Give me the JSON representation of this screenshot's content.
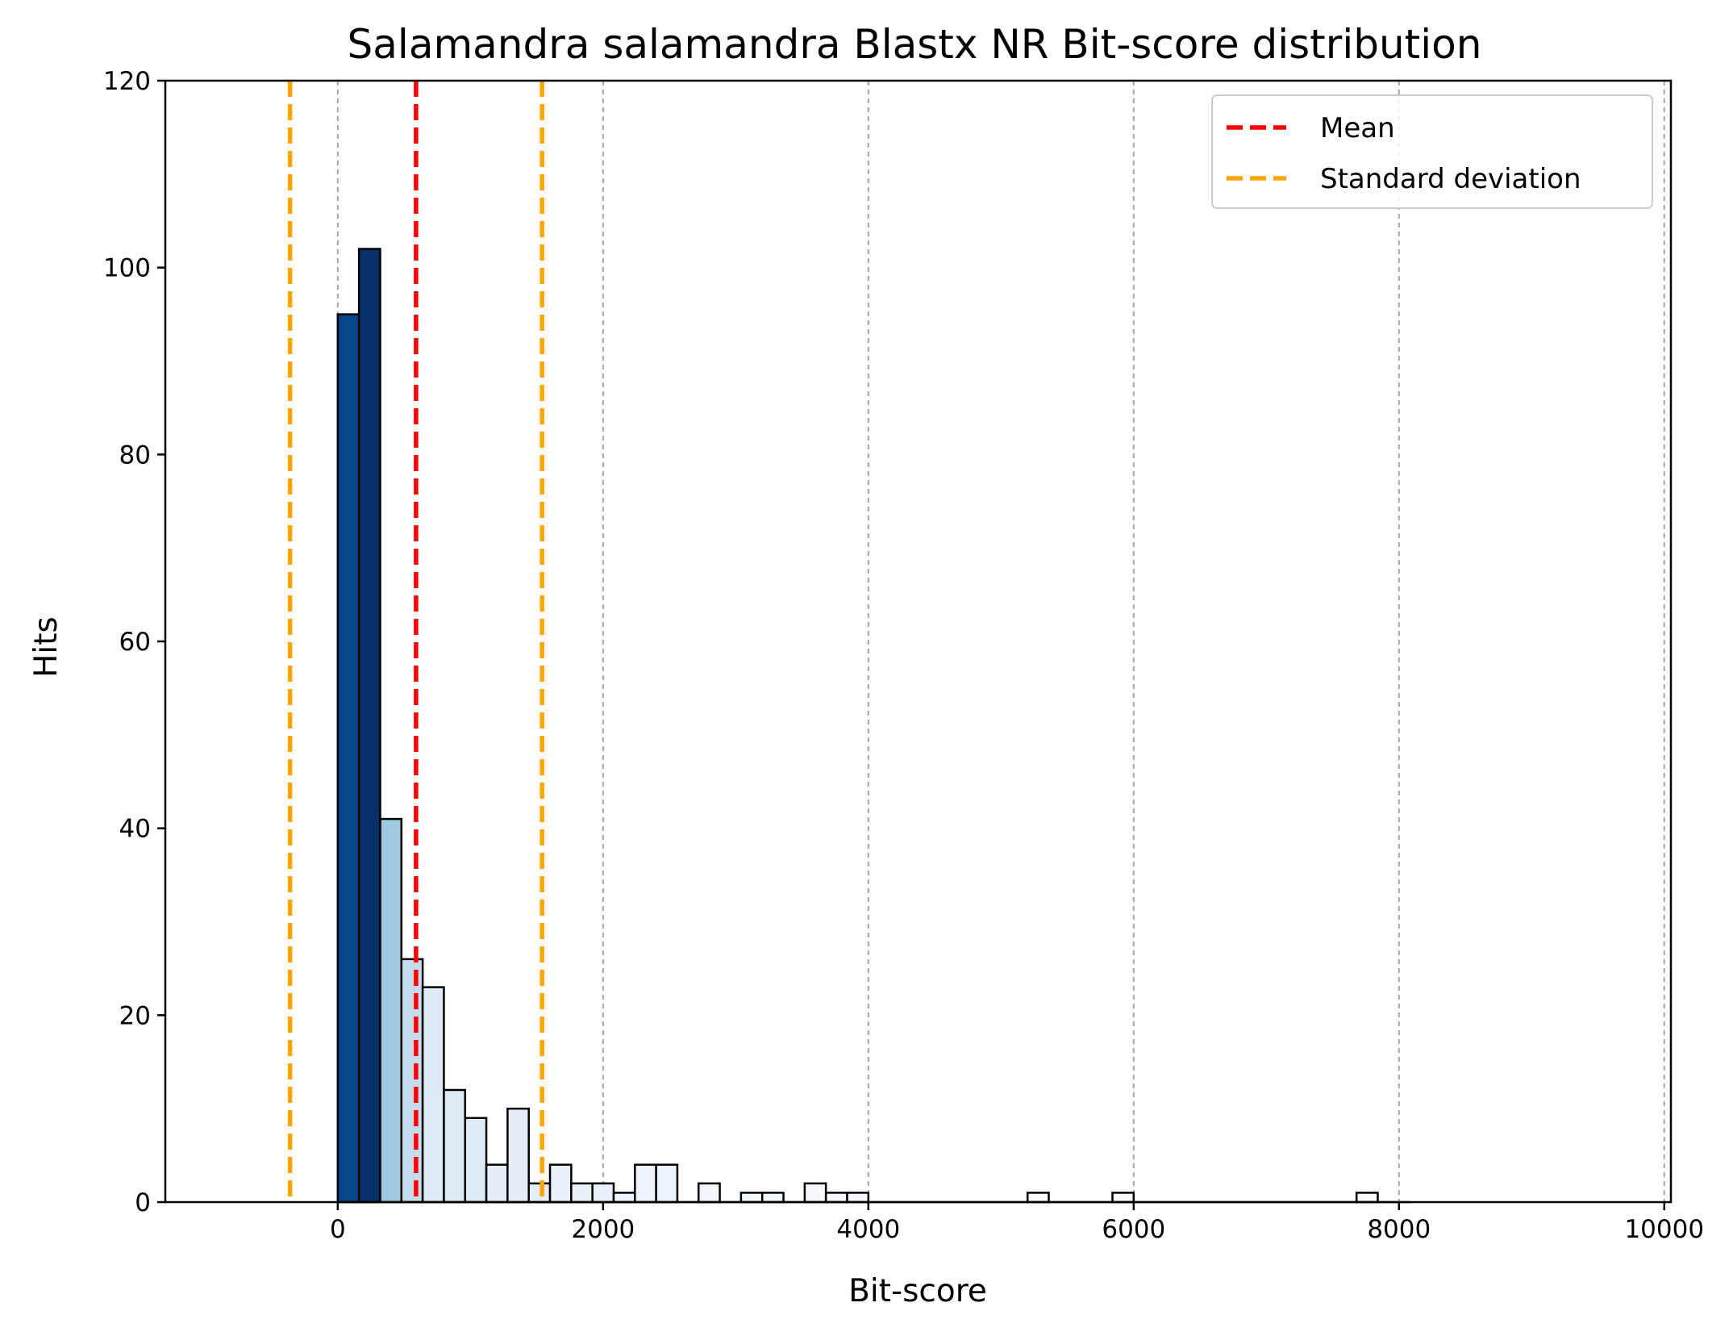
{
  "chart_data": {
    "type": "bar",
    "title": "Salamandra salamandra Blastx NR Bit-score distribution",
    "xlabel": "Bit-score",
    "ylabel": "Hits",
    "xlim": [
      -1300,
      10050
    ],
    "ylim": [
      0,
      120
    ],
    "xticks": [
      "0",
      "2000",
      "4000",
      "6000",
      "8000",
      "10000"
    ],
    "yticks": [
      "0",
      "20",
      "40",
      "60",
      "80",
      "100",
      "120"
    ],
    "grid": "vertical dashed at x ticks",
    "bin_width": 160,
    "bins": [
      {
        "x": 0,
        "value": 95,
        "color": "#08468a"
      },
      {
        "x": 160,
        "value": 102,
        "color": "#08306b"
      },
      {
        "x": 320,
        "value": 41,
        "color": "#9ecae1"
      },
      {
        "x": 480,
        "value": 26,
        "color": "#c6dbef"
      },
      {
        "x": 640,
        "value": 23,
        "color": "#deebf7"
      },
      {
        "x": 800,
        "value": 12,
        "color": "#deebf7"
      },
      {
        "x": 960,
        "value": 9,
        "color": "#deebf7"
      },
      {
        "x": 1120,
        "value": 4,
        "color": "#e3eef9"
      },
      {
        "x": 1280,
        "value": 10,
        "color": "#e3eef9"
      },
      {
        "x": 1440,
        "value": 2,
        "color": "#e3eef9"
      },
      {
        "x": 1600,
        "value": 4,
        "color": "#e8f1fa"
      },
      {
        "x": 1760,
        "value": 2,
        "color": "#e8f1fa"
      },
      {
        "x": 1920,
        "value": 2,
        "color": "#e8f1fa"
      },
      {
        "x": 2080,
        "value": 1,
        "color": "#edf4fb"
      },
      {
        "x": 2240,
        "value": 4,
        "color": "#edf4fb"
      },
      {
        "x": 2400,
        "value": 4,
        "color": "#edf4fb"
      },
      {
        "x": 2720,
        "value": 2,
        "color": "#f1f6fc"
      },
      {
        "x": 3040,
        "value": 1,
        "color": "#f3f8fd"
      },
      {
        "x": 3200,
        "value": 1,
        "color": "#f3f8fd"
      },
      {
        "x": 3520,
        "value": 2,
        "color": "#f5f9fd"
      },
      {
        "x": 3680,
        "value": 1,
        "color": "#f5f9fd"
      },
      {
        "x": 3840,
        "value": 1,
        "color": "#f5f9fd"
      },
      {
        "x": 5200,
        "value": 1,
        "color": "#f7fbff"
      },
      {
        "x": 5840,
        "value": 1,
        "color": "#f7fbff"
      },
      {
        "x": 7680,
        "value": 1,
        "color": "#f7fbff"
      }
    ],
    "baseline_to": 8080,
    "reference_lines": [
      {
        "name": "Mean",
        "x": 590,
        "color": "#ff0000"
      },
      {
        "name": "Standard deviation",
        "x": -360,
        "color": "#ffa500"
      },
      {
        "name": "Standard deviation",
        "x": 1540,
        "color": "#ffa500"
      }
    ],
    "legend": {
      "position": "top-right",
      "entries": [
        {
          "label": "Mean",
          "color": "#ff0000"
        },
        {
          "label": "Standard deviation",
          "color": "#ffa500"
        }
      ]
    }
  }
}
